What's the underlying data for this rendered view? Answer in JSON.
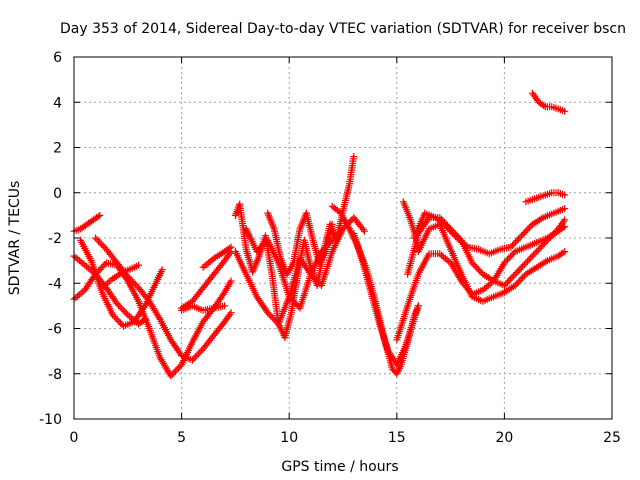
{
  "chart_data": {
    "type": "scatter",
    "title": "Day 353 of 2014, Sidereal Day-to-day VTEC variation (SDTVAR) for receiver bscn",
    "xlabel": "GPS time / hours",
    "ylabel": "SDTVAR / TECUs",
    "xlim": [
      0,
      25
    ],
    "ylim": [
      -10,
      6
    ],
    "xticks": [
      0,
      5,
      10,
      15,
      20,
      25
    ],
    "yticks": [
      -10,
      -8,
      -6,
      -4,
      -2,
      0,
      2,
      4,
      6
    ],
    "grid": true,
    "marker": "+",
    "color": "#ff0000",
    "series": [
      {
        "name": "trace-1",
        "x": [
          0.0,
          0.3,
          0.6,
          0.9,
          1.2
        ],
        "y": [
          -1.7,
          -1.6,
          -1.4,
          -1.2,
          -1.0
        ]
      },
      {
        "name": "trace-2",
        "x": [
          0.0,
          0.5,
          1.0,
          1.5,
          2.0,
          2.5,
          3.0,
          3.3
        ],
        "y": [
          -2.8,
          -3.2,
          -3.6,
          -4.2,
          -4.9,
          -5.4,
          -5.8,
          -5.6
        ]
      },
      {
        "name": "trace-3",
        "x": [
          0.0,
          0.5,
          1.0,
          1.5,
          2.0,
          2.5,
          3.0,
          3.5,
          4.0,
          4.5,
          5.0,
          5.5,
          6.0,
          6.5,
          7.0,
          7.3
        ],
        "y": [
          -4.7,
          -4.3,
          -3.6,
          -3.1,
          -3.2,
          -3.9,
          -4.8,
          -6.0,
          -7.3,
          -8.1,
          -7.6,
          -6.6,
          -5.7,
          -5.1,
          -4.4,
          -3.9
        ]
      },
      {
        "name": "trace-4",
        "x": [
          0.3,
          0.8,
          1.3,
          1.8,
          2.3,
          2.8,
          3.3,
          3.8,
          4.1
        ],
        "y": [
          -2.1,
          -3.0,
          -4.4,
          -5.4,
          -5.9,
          -5.7,
          -5.0,
          -4.0,
          -3.4
        ]
      },
      {
        "name": "trace-5",
        "x": [
          1.0,
          1.5,
          2.0,
          2.5,
          3.0,
          3.5,
          4.0,
          4.5,
          5.0,
          5.5,
          6.0,
          6.5,
          7.0,
          7.3
        ],
        "y": [
          -2.0,
          -2.5,
          -3.1,
          -3.7,
          -4.2,
          -4.8,
          -5.6,
          -6.5,
          -7.2,
          -7.4,
          -6.9,
          -6.3,
          -5.7,
          -5.3
        ]
      },
      {
        "name": "trace-6",
        "x": [
          1.3,
          1.8,
          2.3,
          2.8,
          3.0
        ],
        "y": [
          -4.2,
          -3.8,
          -3.5,
          -3.3,
          -3.2
        ]
      },
      {
        "name": "trace-7",
        "x": [
          5.0,
          5.5,
          6.0,
          6.5,
          7.0,
          7.3
        ],
        "y": [
          -5.1,
          -4.8,
          -4.2,
          -3.6,
          -3.0,
          -2.6
        ]
      },
      {
        "name": "trace-8",
        "x": [
          6.0,
          6.5,
          7.0,
          7.3
        ],
        "y": [
          -3.3,
          -2.9,
          -2.6,
          -2.4
        ]
      },
      {
        "name": "trace-9",
        "x": [
          5.0,
          5.5,
          6.0,
          6.5,
          7.0
        ],
        "y": [
          -5.2,
          -5.0,
          -5.2,
          -5.1,
          -5.0
        ]
      },
      {
        "name": "trace-10",
        "x": [
          7.5,
          7.7,
          8.0,
          8.3,
          8.6,
          8.9,
          9.2,
          9.5,
          9.8,
          10.1,
          10.4,
          10.7,
          11.0,
          11.3,
          11.6,
          11.9,
          12.2,
          12.5,
          12.8,
          13.0
        ],
        "y": [
          -1.0,
          -0.5,
          -2.5,
          -3.5,
          -2.8,
          -1.9,
          -3.6,
          -5.8,
          -6.4,
          -5.3,
          -3.6,
          -2.1,
          -3.3,
          -4.1,
          -2.6,
          -1.4,
          -2.1,
          -0.8,
          0.4,
          1.6
        ]
      },
      {
        "name": "trace-11",
        "x": [
          7.5,
          8.0,
          8.5,
          9.0,
          9.5,
          10.0,
          10.5,
          11.0,
          11.5,
          12.0,
          12.5,
          13.0,
          13.5
        ],
        "y": [
          -2.6,
          -3.6,
          -4.6,
          -5.3,
          -5.8,
          -4.6,
          -2.9,
          -3.6,
          -4.1,
          -2.6,
          -1.6,
          -1.1,
          -1.7
        ]
      },
      {
        "name": "trace-12",
        "x": [
          8.0,
          8.5,
          9.0,
          9.5,
          10.0,
          10.5,
          11.0,
          11.5,
          12.0,
          12.5
        ],
        "y": [
          -1.6,
          -2.6,
          -2.1,
          -3.1,
          -4.6,
          -5.1,
          -3.6,
          -2.6,
          -2.1,
          -1.6
        ]
      },
      {
        "name": "trace-13",
        "x": [
          9.0,
          9.3,
          9.6,
          9.9,
          10.2,
          10.5,
          10.8,
          11.1,
          11.4,
          11.7,
          12.0
        ],
        "y": [
          -0.9,
          -1.6,
          -2.9,
          -3.6,
          -3.1,
          -1.6,
          -0.9,
          -2.1,
          -3.1,
          -2.6,
          -1.4
        ]
      },
      {
        "name": "trace-14",
        "x": [
          12.0,
          12.4,
          12.8,
          13.2,
          13.6,
          14.0,
          14.4,
          14.8,
          15.0,
          15.2,
          15.5,
          15.8,
          16.0
        ],
        "y": [
          -0.6,
          -0.9,
          -1.6,
          -2.4,
          -3.4,
          -4.8,
          -6.4,
          -7.8,
          -8.0,
          -7.6,
          -6.6,
          -5.5,
          -5.0
        ]
      },
      {
        "name": "trace-15",
        "x": [
          13.0,
          13.4,
          13.8,
          14.2,
          14.6,
          15.0,
          15.4,
          15.8,
          16.0
        ],
        "y": [
          -1.8,
          -3.0,
          -4.4,
          -5.8,
          -7.0,
          -7.6,
          -6.8,
          -5.6,
          -5.0
        ]
      },
      {
        "name": "trace-16",
        "x": [
          15.0,
          15.5,
          16.0,
          16.5,
          17.0,
          17.5,
          18.0,
          18.5,
          19.0,
          19.5,
          20.0,
          20.5,
          21.0,
          21.5,
          22.0,
          22.5,
          22.8
        ],
        "y": [
          -6.5,
          -5.0,
          -3.6,
          -2.7,
          -2.7,
          -3.1,
          -3.9,
          -4.5,
          -4.3,
          -3.9,
          -3.1,
          -2.6,
          -2.4,
          -2.2,
          -2.0,
          -1.7,
          -1.5
        ]
      },
      {
        "name": "trace-17",
        "x": [
          15.5,
          16.0,
          16.5,
          17.0,
          17.5,
          18.0,
          18.5,
          19.0,
          19.5,
          20.0,
          20.5,
          21.0,
          21.5,
          22.0,
          22.5,
          22.8
        ],
        "y": [
          -3.6,
          -1.8,
          -1.1,
          -1.1,
          -1.6,
          -2.1,
          -3.1,
          -3.6,
          -3.9,
          -4.1,
          -3.6,
          -3.1,
          -2.6,
          -2.1,
          -1.6,
          -1.2
        ]
      },
      {
        "name": "trace-18",
        "x": [
          15.8,
          16.3,
          16.8,
          17.3,
          17.8,
          18.3,
          18.8,
          19.3,
          19.8,
          20.3,
          20.8,
          21.3,
          21.8,
          22.3,
          22.8
        ],
        "y": [
          -2.0,
          -0.9,
          -1.1,
          -1.5,
          -2.0,
          -2.4,
          -2.5,
          -2.7,
          -2.5,
          -2.4,
          -1.9,
          -1.4,
          -1.1,
          -0.9,
          -0.7
        ]
      },
      {
        "name": "trace-19",
        "x": [
          16.0,
          16.5,
          17.0,
          17.5,
          18.0,
          18.5,
          19.0,
          19.5,
          20.0,
          20.5,
          21.0,
          21.5,
          22.0,
          22.5,
          22.8
        ],
        "y": [
          -2.6,
          -1.6,
          -1.4,
          -2.5,
          -3.6,
          -4.6,
          -4.8,
          -4.6,
          -4.4,
          -4.1,
          -3.6,
          -3.3,
          -3.0,
          -2.8,
          -2.6
        ]
      },
      {
        "name": "trace-20",
        "x": [
          15.3,
          15.6,
          15.9,
          16.0
        ],
        "y": [
          -0.4,
          -1.1,
          -2.0,
          -2.4
        ]
      },
      {
        "name": "trace-21",
        "x": [
          21.0,
          21.3,
          21.6,
          21.9,
          22.2,
          22.5,
          22.8
        ],
        "y": [
          -0.4,
          -0.3,
          -0.2,
          -0.1,
          -0.0,
          -0.0,
          -0.1
        ]
      },
      {
        "name": "trace-22",
        "x": [
          21.3,
          21.6,
          21.9,
          22.2,
          22.5,
          22.8
        ],
        "y": [
          4.4,
          4.0,
          3.8,
          3.8,
          3.7,
          3.6
        ]
      }
    ]
  }
}
